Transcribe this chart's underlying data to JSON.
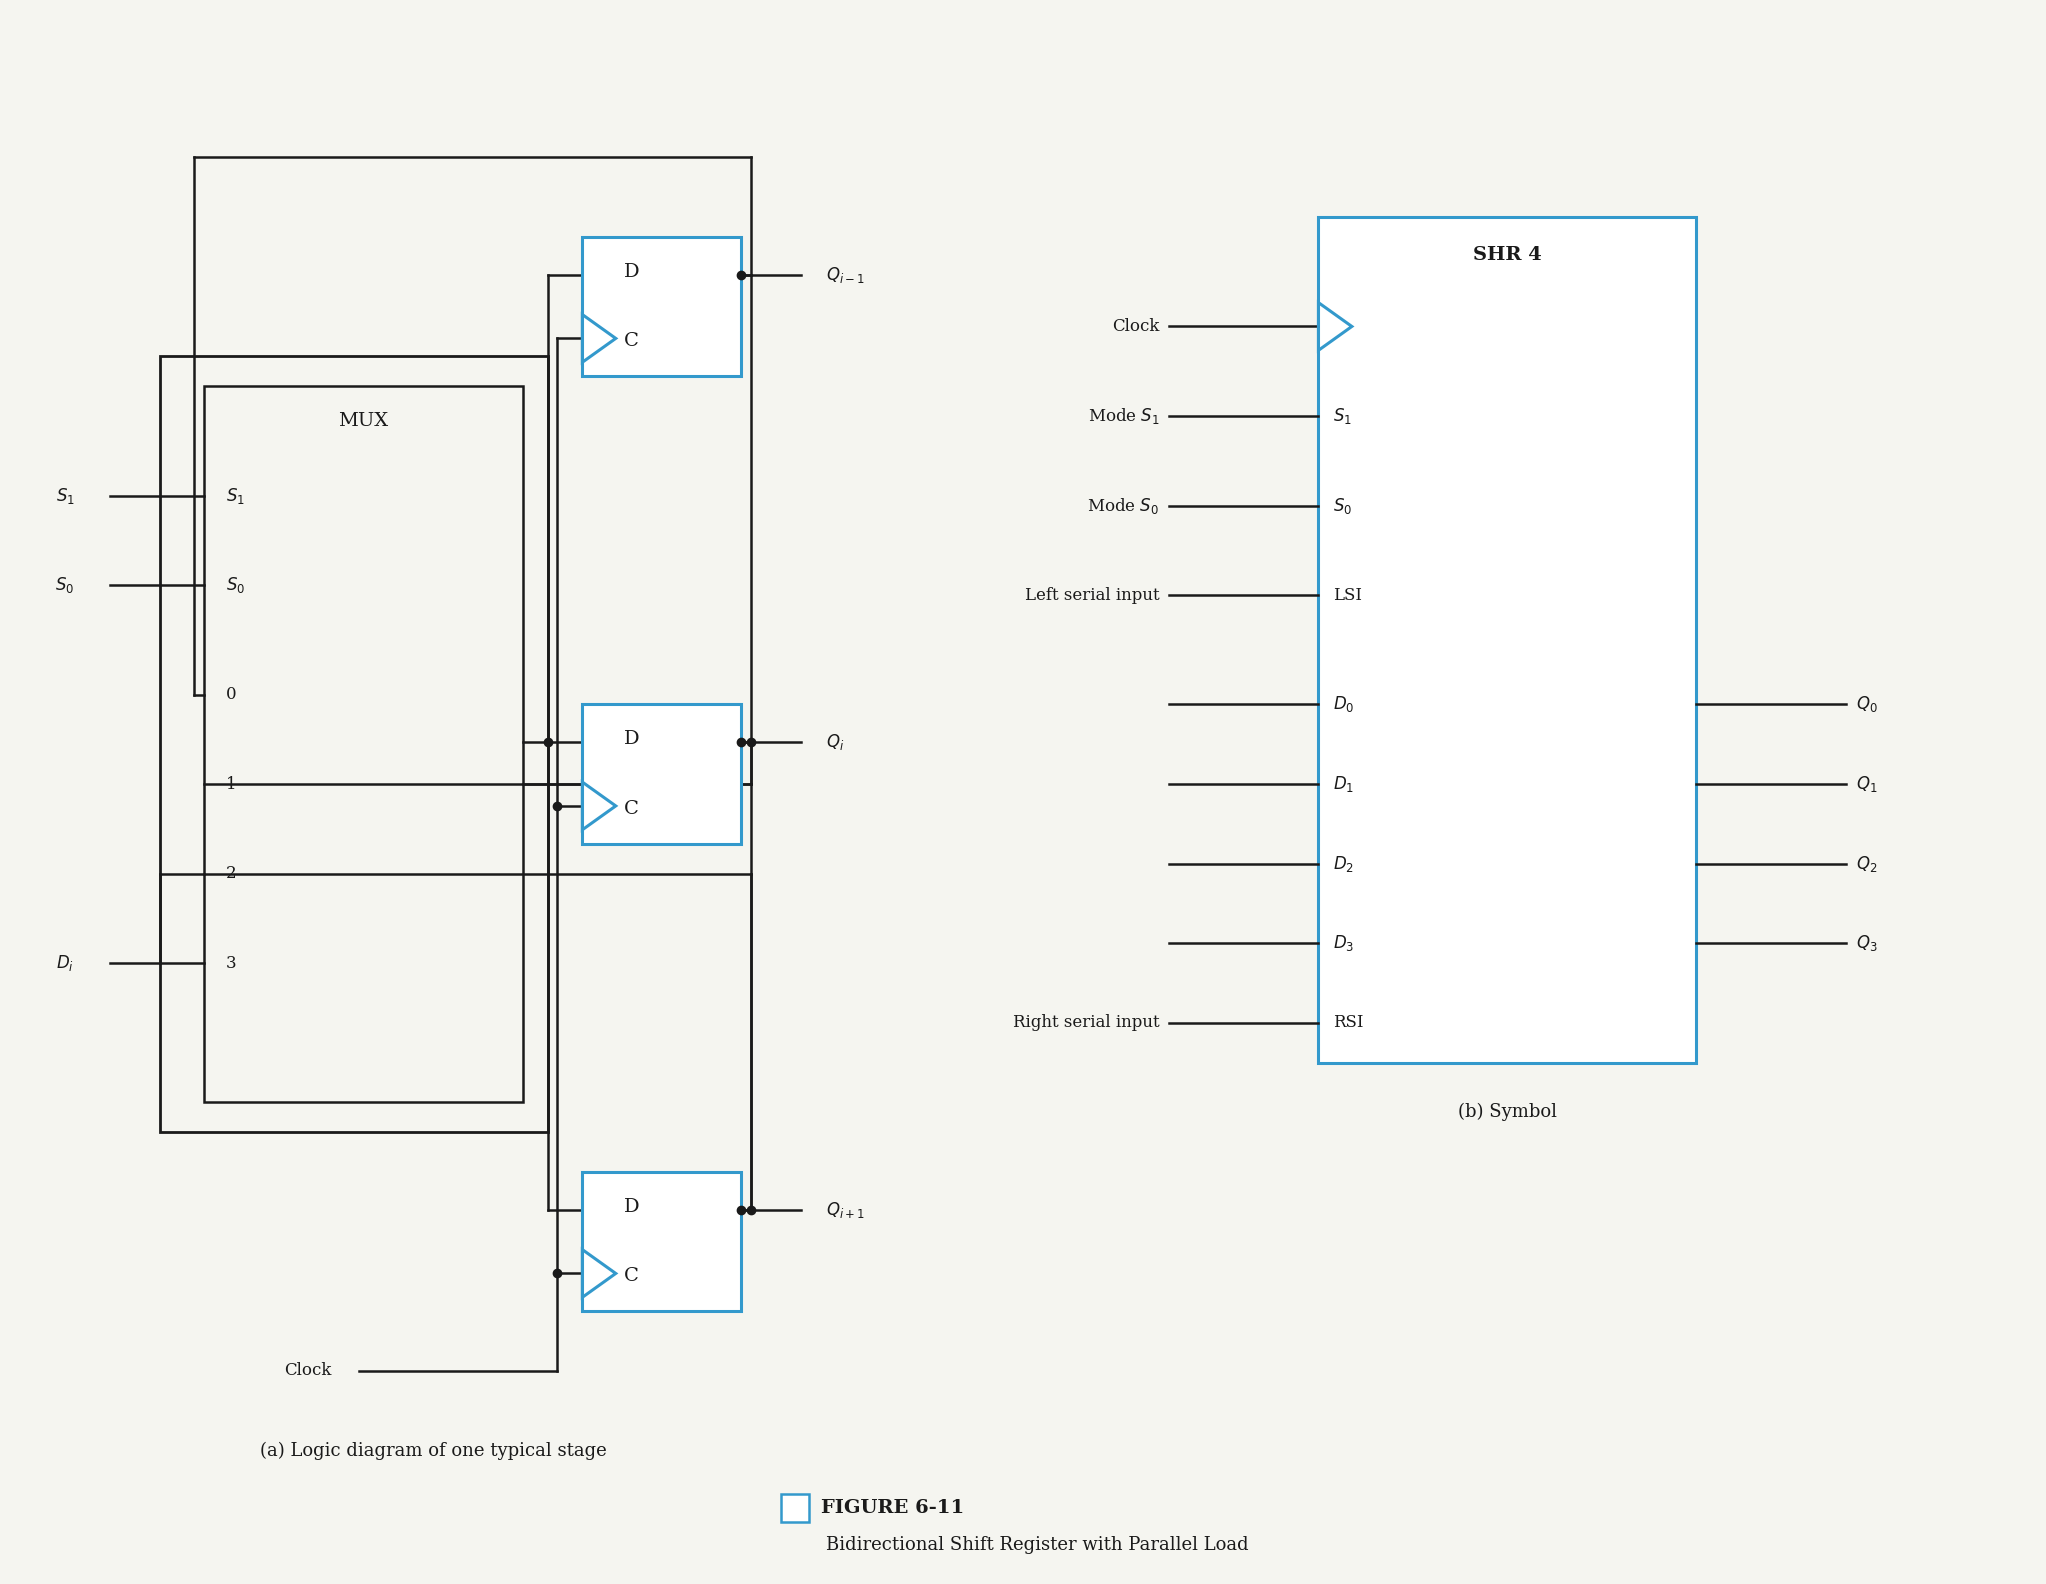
{
  "bg_color": "#f5f5f0",
  "line_color": "#1a1a1a",
  "blue_color": "#3399cc",
  "title": "FIGURE 6-11",
  "subtitle": "Bidirectional Shift Register with Parallel Load",
  "caption_a": "(a) Logic diagram of one typical stage",
  "caption_b": "(b) Symbol",
  "fig_w": 20.46,
  "fig_h": 15.84
}
